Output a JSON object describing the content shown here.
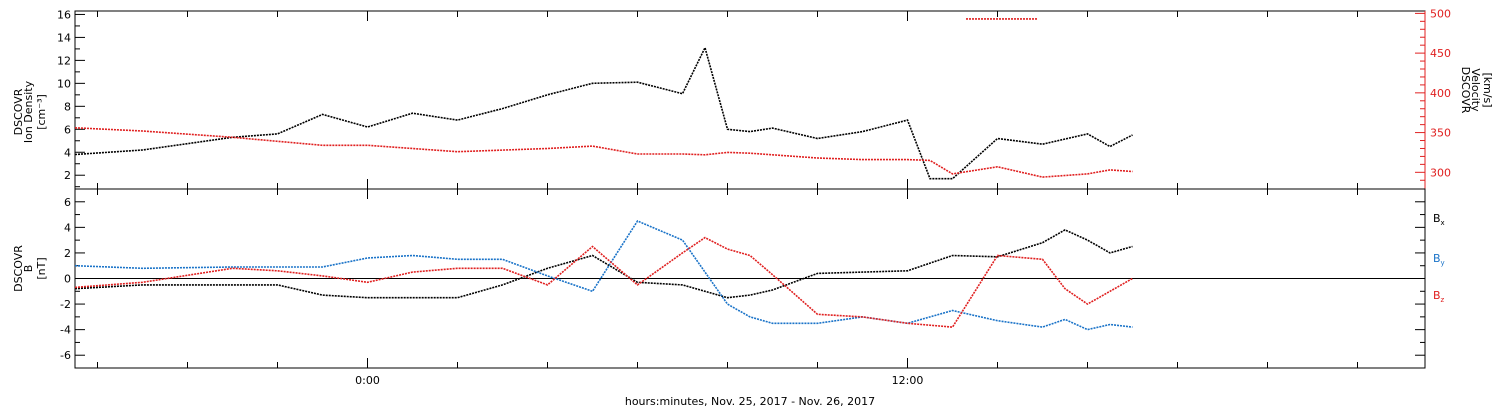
{
  "chart_data": [
    {
      "type": "line",
      "panel": "plasma",
      "left_axis_label": [
        "DSCOVR",
        "Ion Density",
        "[cm⁻³]"
      ],
      "right_axis_label": [
        "DSCOVR",
        "Velocity",
        "[km/s]"
      ],
      "left_ylim": [
        0.8,
        16.3
      ],
      "right_ylim": [
        279,
        503
      ],
      "left_ticks": [
        2,
        4,
        6,
        8,
        10,
        12,
        14,
        16
      ],
      "right_ticks": [
        300,
        350,
        400,
        450,
        500
      ],
      "colors": {
        "density": "#000000",
        "velocity": "#e02020"
      },
      "x_hours": [
        -6.5,
        -5,
        -3,
        -2,
        -1,
        0,
        1,
        2,
        3,
        4,
        5,
        6,
        7,
        7.5,
        8,
        8.5,
        9,
        10,
        11,
        12,
        12.5,
        13,
        14,
        15,
        16,
        16.5,
        17
      ],
      "series": [
        {
          "key": "density",
          "axis": "left",
          "values": [
            3.8,
            4.2,
            5.3,
            5.6,
            7.3,
            6.2,
            7.4,
            6.8,
            7.8,
            9.0,
            10.0,
            10.1,
            9.1,
            13.1,
            6.0,
            5.8,
            6.1,
            5.2,
            5.8,
            6.8,
            1.7,
            1.7,
            5.2,
            4.7,
            5.6,
            4.5,
            5.5
          ]
        },
        {
          "key": "velocity",
          "axis": "right",
          "values": [
            356,
            352,
            344,
            339,
            334,
            334,
            330,
            326,
            328,
            330,
            333,
            323,
            323,
            322,
            325,
            324,
            322,
            318,
            316,
            316,
            315,
            298,
            307,
            294,
            298,
            303,
            301
          ]
        }
      ],
      "velocity_burst": {
        "x_hours": [
          13.3,
          14.9
        ],
        "value": 493
      }
    },
    {
      "type": "line",
      "panel": "magnetic",
      "left_axis_label": [
        "DSCOVR",
        "B",
        "[nT]"
      ],
      "ylim": [
        -7.0,
        7.0
      ],
      "ticks": [
        -6,
        -4,
        -2,
        0,
        2,
        4,
        6
      ],
      "colors": {
        "Bx": "#000000",
        "By": "#1a73c8",
        "Bz": "#e02020"
      },
      "legend": [
        {
          "key": "Bx",
          "label": "B",
          "sub": "x"
        },
        {
          "key": "By",
          "label": "B",
          "sub": "y"
        },
        {
          "key": "Bz",
          "label": "B",
          "sub": "z"
        }
      ],
      "x_hours": [
        -6.5,
        -5,
        -3,
        -2,
        -1,
        0,
        1,
        2,
        3,
        4,
        5,
        6,
        7,
        7.5,
        8,
        8.5,
        9,
        10,
        11,
        12,
        13,
        14,
        15,
        15.5,
        16,
        16.5,
        17
      ],
      "series": [
        {
          "key": "Bx",
          "values": [
            -0.8,
            -0.5,
            -0.5,
            -0.5,
            -1.3,
            -1.5,
            -1.5,
            -1.5,
            -0.5,
            0.8,
            1.8,
            -0.3,
            -0.5,
            -1.0,
            -1.5,
            -1.3,
            -0.9,
            0.4,
            0.5,
            0.6,
            1.8,
            1.7,
            2.8,
            3.8,
            3.0,
            2.0,
            2.5
          ]
        },
        {
          "key": "By",
          "values": [
            1.0,
            0.8,
            0.9,
            0.9,
            0.9,
            1.6,
            1.8,
            1.5,
            1.5,
            0.2,
            -1.0,
            4.5,
            3.0,
            0.5,
            -2.0,
            -3.0,
            -3.5,
            -3.5,
            -3.0,
            -3.5,
            -2.5,
            -3.3,
            -3.8,
            -3.2,
            -4.0,
            -3.6,
            -3.8
          ]
        },
        {
          "key": "Bz",
          "values": [
            -0.7,
            -0.3,
            0.8,
            0.6,
            0.2,
            -0.3,
            0.5,
            0.8,
            0.8,
            -0.5,
            2.5,
            -0.5,
            2.0,
            3.2,
            2.3,
            1.8,
            0.3,
            -2.8,
            -3.0,
            -3.5,
            -3.8,
            1.8,
            1.5,
            -0.8,
            -2.0,
            -1.0,
            0.0
          ]
        }
      ]
    }
  ],
  "x_axis": {
    "title": "hours:minutes, Nov. 25, 2017 - Nov. 26, 2017",
    "range_hours": [
      -6.5,
      23.5
    ],
    "labels": [
      {
        "hour": 0,
        "text": "0:00"
      },
      {
        "hour": 12,
        "text": "12:00"
      }
    ],
    "minor_tick_step_hours": 2
  }
}
